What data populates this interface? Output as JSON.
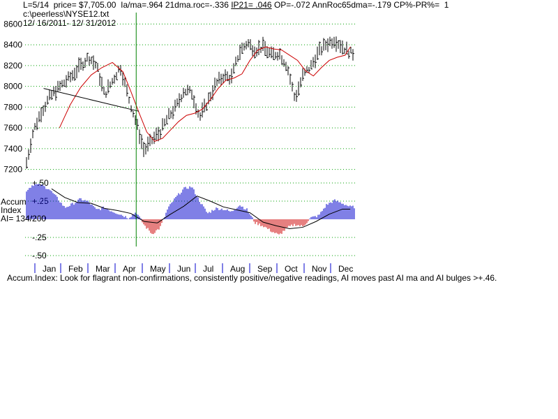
{
  "header": {
    "part1": "L=5/14  price= $7,705.00  Ia/ma=.964 21dma.roc=-.336 ",
    "ip21": "IP21= .046",
    "part2": " OP=-.072 AnnRoc65dma=-.179 CP%-PR%=  1",
    "file": "c:\\peerless\\NYSE12.txt",
    "range": "12/ 16/2011- 12/ 31/2012"
  },
  "indicator_label": {
    "line1": "Accum",
    "line2": "Index",
    "line3": "AI= 134/200"
  },
  "footer": "Accum.Index: Look for flagrant non-confirmations, consistently positive/negative readings, AI moves past AI ma and AI bulges >+.46.",
  "colors": {
    "price_bars": "#000000",
    "price_ma": "#cc0000",
    "grid": "#00a000",
    "ai_positive": "#0000cc",
    "ai_negative": "#cc0000",
    "ai_ma": "#000000",
    "marker": "#008000",
    "trendline": "#000000"
  },
  "chart_data": [
    {
      "type": "line",
      "title": "NYSE",
      "ylim": [
        7150,
        8650
      ],
      "yticks": [
        7200,
        7400,
        7600,
        7800,
        8000,
        8200,
        8400,
        8600
      ],
      "x_range": [
        0,
        12.5
      ],
      "grid": "horizontal dotted",
      "notes": "x in months since Dec 16, 2011 (Jan label at ~0.75)",
      "price": {
        "x": [
          0.0,
          0.3,
          0.6,
          0.9,
          1.2,
          1.5,
          1.8,
          2.1,
          2.4,
          2.7,
          3.0,
          3.3,
          3.6,
          3.9,
          4.2,
          4.5,
          4.8,
          5.1,
          5.4,
          5.7,
          6.0,
          6.3,
          6.6,
          6.9,
          7.2,
          7.5,
          7.8,
          8.1,
          8.4,
          8.7,
          9.0,
          9.3,
          9.6,
          9.9,
          10.2,
          10.5,
          10.8,
          11.1,
          11.4,
          11.7,
          12.0,
          12.3
        ],
        "values": [
          7200,
          7560,
          7750,
          7880,
          7970,
          8040,
          8110,
          8200,
          8280,
          8200,
          7920,
          8050,
          8190,
          7900,
          7650,
          7380,
          7480,
          7560,
          7700,
          7800,
          7960,
          7940,
          7700,
          7850,
          8020,
          8100,
          8080,
          8330,
          8420,
          8350,
          8380,
          8300,
          8320,
          8200,
          7880,
          8100,
          8190,
          8330,
          8410,
          8450,
          8380,
          8320
        ]
      },
      "price_ma": {
        "x": [
          1.3,
          1.7,
          2.1,
          2.5,
          2.9,
          3.3,
          3.7,
          4.0,
          4.3,
          4.6,
          4.9,
          5.2,
          5.5,
          5.8,
          6.1,
          6.4,
          6.7,
          7.0,
          7.3,
          7.6,
          7.9,
          8.2,
          8.5,
          8.8,
          9.1,
          9.4,
          9.7,
          10.0,
          10.3,
          10.6,
          10.9,
          11.2,
          11.5,
          11.8,
          12.1,
          12.3
        ],
        "values": [
          7600,
          7820,
          7990,
          8110,
          8180,
          8230,
          8140,
          7950,
          7750,
          7560,
          7470,
          7500,
          7580,
          7660,
          7720,
          7740,
          7780,
          7870,
          7980,
          8060,
          8080,
          8120,
          8250,
          8350,
          8380,
          8360,
          8350,
          8300,
          8250,
          8150,
          8100,
          8180,
          8250,
          8280,
          8300,
          8380
        ]
      },
      "trendline": {
        "x": [
          0.7,
          4.3
        ],
        "values": [
          7980,
          7760
        ]
      },
      "marker_x": 4.2,
      "bar_ranges": [
        60,
        150
      ]
    },
    {
      "type": "bar",
      "title": "Accum Index",
      "ylim": [
        -0.5,
        0.5
      ],
      "yticks": [
        0.5,
        0.25,
        -0.25,
        -0.5
      ],
      "ytick_labels": [
        "+.50",
        "+.25",
        "-.25",
        "-.50"
      ],
      "x": [
        0.0,
        0.3,
        0.6,
        0.9,
        1.2,
        1.5,
        1.8,
        2.1,
        2.4,
        2.7,
        3.0,
        3.3,
        3.6,
        3.9,
        4.2,
        4.5,
        4.8,
        5.1,
        5.4,
        5.7,
        6.0,
        6.3,
        6.6,
        6.9,
        7.2,
        7.5,
        7.8,
        8.1,
        8.4,
        8.7,
        9.0,
        9.3,
        9.6,
        9.9,
        10.2,
        10.5,
        10.8,
        11.1,
        11.4,
        11.7,
        12.0,
        12.3
      ],
      "values": [
        0.38,
        0.48,
        0.47,
        0.42,
        0.3,
        0.16,
        0.21,
        0.28,
        0.24,
        0.13,
        0.16,
        0.11,
        0.07,
        0.02,
        0.1,
        -0.08,
        -0.2,
        -0.12,
        0.15,
        0.3,
        0.42,
        0.45,
        0.25,
        0.08,
        0.15,
        0.14,
        0.1,
        0.2,
        0.13,
        -0.05,
        -0.09,
        -0.16,
        -0.22,
        -0.12,
        -0.07,
        -0.1,
        0.02,
        0.05,
        0.2,
        0.26,
        0.22,
        0.17
      ],
      "ai_ma": {
        "x": [
          1.0,
          1.5,
          2.0,
          2.5,
          3.0,
          3.5,
          4.0,
          4.5,
          5.0,
          5.5,
          6.0,
          6.5,
          7.0,
          7.5,
          8.0,
          8.5,
          9.0,
          9.5,
          10.0,
          10.5,
          11.0,
          11.5,
          12.0,
          12.3
        ],
        "values": [
          0.42,
          0.3,
          0.23,
          0.22,
          0.15,
          0.12,
          0.08,
          -0.03,
          -0.05,
          0.07,
          0.18,
          0.32,
          0.25,
          0.17,
          0.13,
          0.09,
          -0.04,
          -0.09,
          -0.13,
          -0.11,
          -0.03,
          0.07,
          0.14,
          0.14
        ]
      }
    }
  ],
  "months": [
    "Jan",
    "Feb",
    "Mar",
    "Apr",
    "May",
    "Jun",
    "Jul",
    "Aug",
    "Sep",
    "Oct",
    "Nov",
    "Dec"
  ]
}
